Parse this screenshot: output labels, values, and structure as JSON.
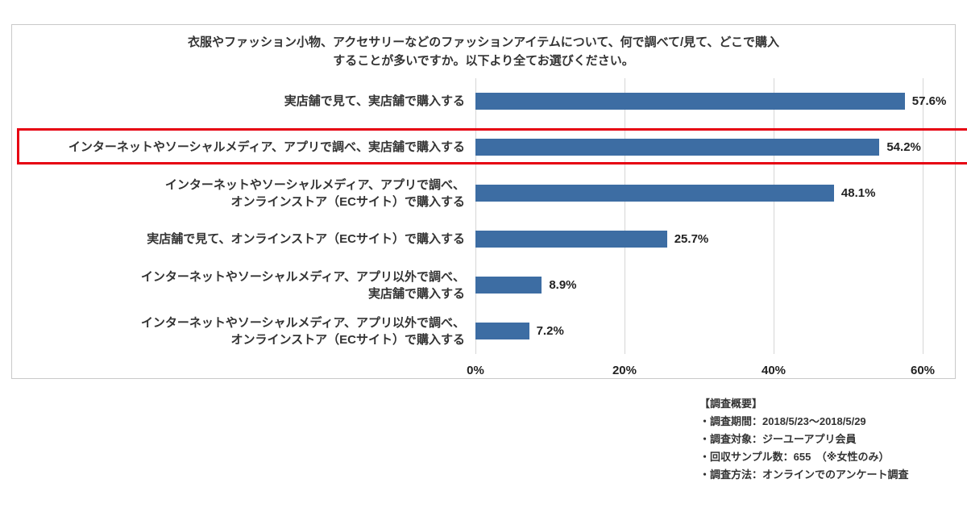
{
  "chart_data": {
    "type": "bar",
    "orientation": "horizontal",
    "title": "衣服やファッション小物、アクセサリーなどのファッションアイテムについて、何で調べて/見て、どこで購入\nすることが多いですか。以下より全てお選びください。",
    "categories": [
      "実店舗で見て、実店舗で購入する",
      "インターネットやソーシャルメディア、アプリで調べ、実店舗で購入する",
      "インターネットやソーシャルメディア、アプリで調べ、\nオンラインストア（ECサイト）で購入する",
      "実店舗で見て、オンラインストア（ECサイト）で購入する",
      "インターネットやソーシャルメディア、アプリ以外で調べ、\n実店舗で購入する",
      "インターネットやソーシャルメディア、アプリ以外で調べ、\nオンラインストア（ECサイト）で購入する"
    ],
    "values": [
      57.6,
      54.2,
      48.1,
      25.7,
      8.9,
      7.2
    ],
    "value_labels": [
      "57.6%",
      "54.2%",
      "48.1%",
      "25.7%",
      "8.9%",
      "7.2%"
    ],
    "x_ticks": [
      "0%",
      "20%",
      "40%",
      "60%"
    ],
    "xlim": [
      0,
      60
    ],
    "grid": true,
    "legend": false,
    "highlighted_index": 1,
    "bar_color": "#3d6da3",
    "highlight_box_color": "#e60012"
  },
  "footer": {
    "lines": [
      "【調査概要】",
      "・調査期間：2018/5/23～2018/5/29",
      "・調査対象：ジーユーアプリ会員",
      "・回収サンプル数：655　（※女性のみ）",
      "・調査方法：オンラインでのアンケート調査"
    ]
  }
}
